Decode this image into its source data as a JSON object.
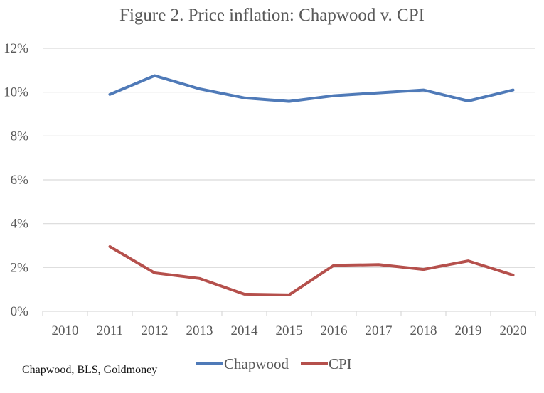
{
  "chart_data": {
    "type": "line",
    "title": "Figure 2. Price inflation: Chapwood v. CPI",
    "xlabel": "",
    "ylabel": "",
    "categories": [
      "2010",
      "2011",
      "2012",
      "2013",
      "2014",
      "2015",
      "2016",
      "2017",
      "2018",
      "2019",
      "2020"
    ],
    "ylim": [
      0,
      12
    ],
    "yticks": [
      0,
      2,
      4,
      6,
      8,
      10,
      12
    ],
    "ytick_labels": [
      "0%",
      "2%",
      "4%",
      "6%",
      "8%",
      "10%",
      "12%"
    ],
    "grid": true,
    "legend_position": "bottom",
    "series": [
      {
        "name": "Chapwood",
        "color": "#4F7AB8",
        "values": [
          null,
          9.9,
          10.75,
          10.15,
          9.74,
          9.58,
          9.84,
          9.97,
          10.1,
          9.6,
          10.1
        ]
      },
      {
        "name": "CPI",
        "color": "#B5504C",
        "values": [
          null,
          2.95,
          1.75,
          1.5,
          0.78,
          0.75,
          2.1,
          2.13,
          1.91,
          2.3,
          1.65
        ]
      }
    ],
    "source_note": "Chapwood, BLS, Goldmoney"
  }
}
